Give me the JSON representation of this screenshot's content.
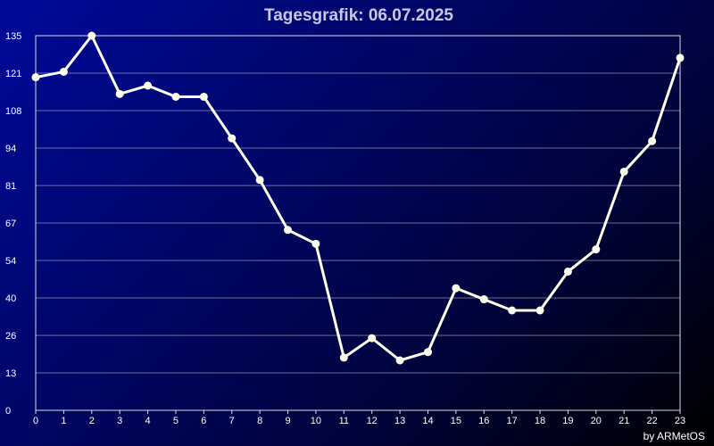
{
  "chart_data": {
    "type": "line",
    "title": "Tagesgrafik: 06.07.2025",
    "credit": "by ARMetOS",
    "x": [
      0,
      1,
      2,
      3,
      4,
      5,
      6,
      7,
      8,
      9,
      10,
      11,
      12,
      13,
      14,
      15,
      16,
      17,
      18,
      19,
      20,
      21,
      22,
      23
    ],
    "x_tick_labels": [
      "0",
      "1",
      "2",
      "3",
      "4",
      "5",
      "6",
      "7",
      "8",
      "9",
      "10",
      "11",
      "12",
      "13",
      "14",
      "15",
      "16",
      "17",
      "18",
      "19",
      "20",
      "21",
      "22",
      "23"
    ],
    "y_tick_labels": [
      "0",
      "13",
      "26",
      "40",
      "54",
      "67",
      "81",
      "94",
      "108",
      "121",
      "135"
    ],
    "ylim": [
      0,
      135
    ],
    "xlabel": "",
    "ylabel": "",
    "grid": true,
    "series": [
      {
        "values": [
          120,
          122,
          135,
          114,
          117,
          113,
          113,
          98,
          83,
          65,
          60,
          19,
          26,
          18,
          21,
          44,
          40,
          36,
          36,
          50,
          58,
          86,
          97,
          127
        ]
      }
    ],
    "colors": {
      "line": "#fffff0",
      "marker": "#fffff0",
      "grid": "#9a9ab4",
      "axis": "#dcdcdc",
      "title": "#c8c8e6"
    }
  }
}
